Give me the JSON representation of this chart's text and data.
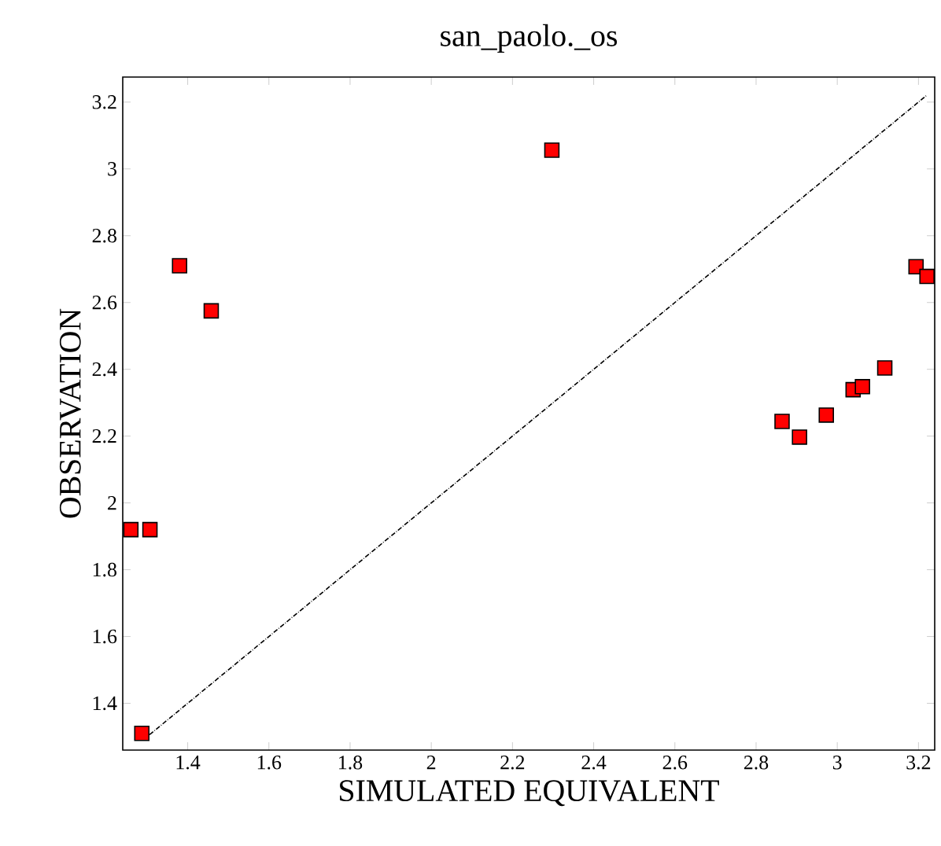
{
  "chart_data": {
    "type": "scatter",
    "title": "san_paolo._os",
    "xlabel": "SIMULATED EQUIVALENT",
    "ylabel": "OBSERVATION",
    "xlim": [
      1.24,
      3.24
    ],
    "ylim": [
      1.26,
      3.275
    ],
    "xticks": [
      1.4,
      1.6,
      1.8,
      2,
      2.2,
      2.4,
      2.6,
      2.8,
      3,
      3.2
    ],
    "yticks": [
      1.4,
      1.6,
      1.8,
      2,
      2.2,
      2.4,
      2.6,
      2.8,
      3,
      3.2
    ],
    "grid": false,
    "marker": "square",
    "series": [
      {
        "type": "line",
        "line_style": "dotted",
        "color": "#000000",
        "marker": "none",
        "x": [
          1.29,
          3.22
        ],
        "values": [
          1.29,
          3.22
        ]
      },
      {
        "color": "#ff0000",
        "x": [
          1.26,
          1.307,
          1.287,
          1.38,
          1.458,
          2.297,
          2.864,
          2.907,
          2.973,
          3.039,
          3.062,
          3.117,
          3.194,
          3.221
        ],
        "values": [
          1.92,
          1.92,
          1.31,
          2.71,
          2.575,
          3.056,
          2.244,
          2.197,
          2.263,
          2.339,
          2.348,
          2.404,
          2.707,
          2.678
        ]
      }
    ]
  }
}
